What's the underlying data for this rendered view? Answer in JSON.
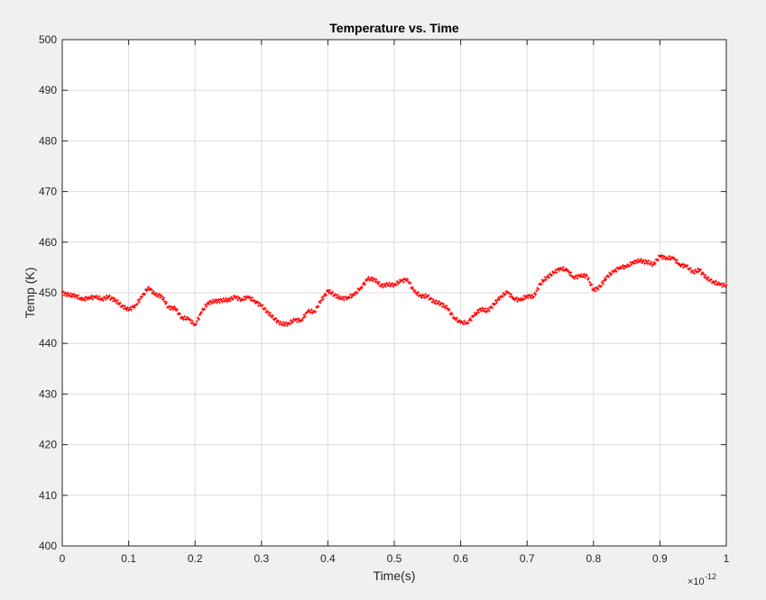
{
  "chart_data": {
    "type": "scatter",
    "title": "Temperature vs. Time",
    "xlabel": "Time(s)",
    "ylabel": "Temp (K)",
    "x_exponent_base": "×10",
    "x_exponent": "-12",
    "xlim": [
      0,
      1
    ],
    "ylim": [
      400,
      500
    ],
    "x_ticks": [
      "0",
      "0.1",
      "0.2",
      "0.3",
      "0.4",
      "0.5",
      "0.6",
      "0.7",
      "0.8",
      "0.9",
      "1"
    ],
    "y_ticks": [
      "400",
      "410",
      "420",
      "430",
      "440",
      "450",
      "460",
      "470",
      "480",
      "490",
      "500"
    ],
    "grid": true,
    "marker": "+",
    "color": "#ff0000",
    "series": [
      {
        "x": [
          0,
          0.01,
          0.02,
          0.03,
          0.04,
          0.05,
          0.06,
          0.07,
          0.08,
          0.09,
          0.1,
          0.11,
          0.12,
          0.13,
          0.14,
          0.15,
          0.16,
          0.17,
          0.18,
          0.19,
          0.2,
          0.21,
          0.22,
          0.23,
          0.24,
          0.25,
          0.26,
          0.27,
          0.28,
          0.29,
          0.3,
          0.31,
          0.32,
          0.33,
          0.34,
          0.35,
          0.36,
          0.37,
          0.38,
          0.39,
          0.4,
          0.41,
          0.42,
          0.43,
          0.44,
          0.45,
          0.46,
          0.47,
          0.48,
          0.49,
          0.5,
          0.51,
          0.52,
          0.53,
          0.54,
          0.55,
          0.56,
          0.57,
          0.58,
          0.59,
          0.6,
          0.61,
          0.62,
          0.63,
          0.64,
          0.65,
          0.66,
          0.67,
          0.68,
          0.69,
          0.7,
          0.71,
          0.72,
          0.73,
          0.74,
          0.75,
          0.76,
          0.77,
          0.78,
          0.79,
          0.8,
          0.81,
          0.82,
          0.83,
          0.84,
          0.85,
          0.86,
          0.87,
          0.88,
          0.89,
          0.9,
          0.91,
          0.92,
          0.93,
          0.94,
          0.95,
          0.96,
          0.97,
          0.98,
          0.99,
          1.0
        ],
        "y": [
          450,
          449.5,
          449.5,
          448.6,
          449.1,
          449.1,
          448.8,
          449.2,
          448.5,
          447.4,
          446.6,
          447.5,
          449.2,
          451.1,
          449.6,
          449.3,
          447.1,
          446.9,
          445.1,
          444.8,
          443.7,
          446.2,
          448.1,
          448.3,
          448.5,
          448.6,
          449.1,
          448.7,
          449.1,
          448.4,
          447.4,
          446.1,
          444.8,
          443.8,
          443.9,
          444.6,
          444.6,
          446.3,
          446.3,
          448.5,
          450.4,
          449.6,
          448.8,
          449.1,
          449.6,
          451.1,
          452.7,
          452.7,
          451.4,
          451.6,
          451.6,
          452.3,
          452.7,
          450.2,
          449.4,
          449.3,
          448.2,
          447.9,
          446.9,
          445.1,
          444.1,
          444.1,
          445.5,
          446.8,
          446.4,
          447.7,
          449.2,
          450.1,
          448.9,
          448.5,
          449.4,
          449.2,
          451.8,
          453.1,
          453.9,
          454.9,
          454.4,
          453.1,
          453.3,
          453.4,
          450.5,
          451.2,
          453.2,
          454.1,
          455.1,
          455.1,
          456.1,
          456.3,
          456.1,
          455.6,
          457.2,
          456.9,
          456.8,
          455.6,
          455.2,
          454.1,
          454.5,
          452.9,
          452.2,
          451.6,
          451.5
        ]
      }
    ]
  }
}
